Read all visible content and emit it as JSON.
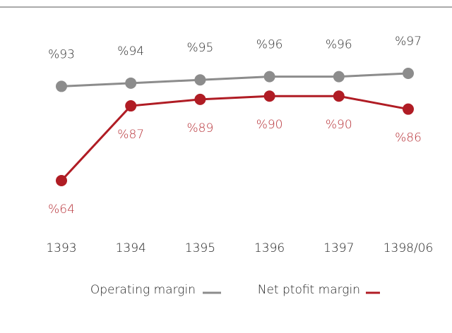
{
  "chart_data": {
    "type": "line",
    "categories": [
      "1393",
      "1394",
      "1395",
      "1396",
      "1397",
      "1398/06"
    ],
    "series": [
      {
        "name": "Operating margin",
        "color": "#8c8c8c",
        "values": [
          93,
          94,
          95,
          96,
          96,
          97
        ],
        "value_labels": [
          "%93",
          "%94",
          "%95",
          "%96",
          "%96",
          "%97"
        ]
      },
      {
        "name": "Net ptofit margin",
        "color": "#b01c24",
        "values": [
          64,
          87,
          89,
          90,
          90,
          86
        ],
        "value_labels": [
          "%64",
          "%87",
          "%89",
          "%90",
          "%90",
          "%86"
        ]
      }
    ],
    "legend": "bottom"
  }
}
